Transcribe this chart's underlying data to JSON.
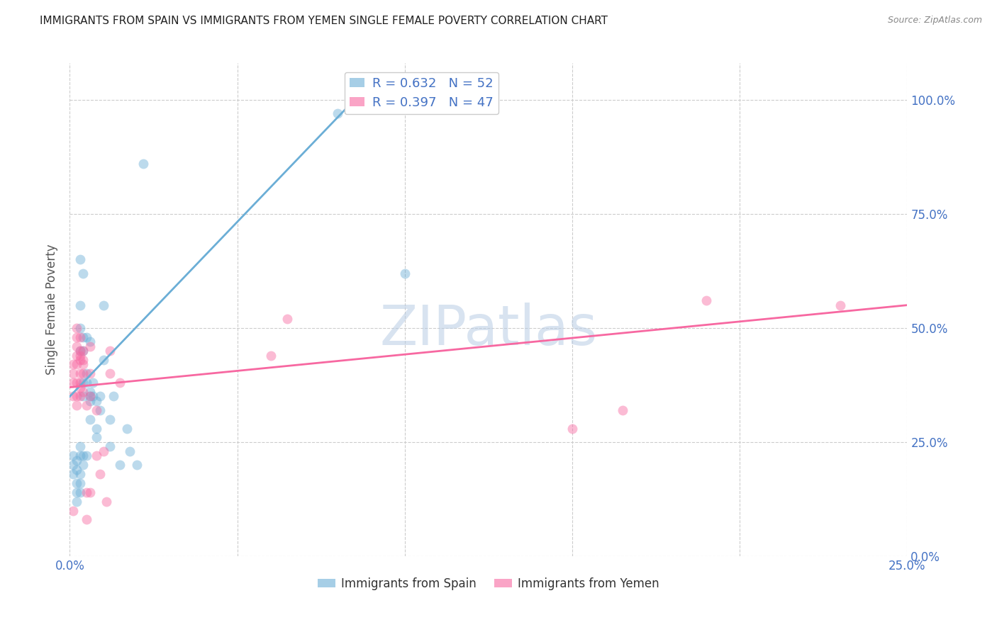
{
  "title": "IMMIGRANTS FROM SPAIN VS IMMIGRANTS FROM YEMEN SINGLE FEMALE POVERTY CORRELATION CHART",
  "source": "Source: ZipAtlas.com",
  "ylabel": "Single Female Poverty",
  "legend_entry1": {
    "R": "0.632",
    "N": "52",
    "color": "#6baed6"
  },
  "legend_entry2": {
    "R": "0.397",
    "N": "47",
    "color": "#f768a1"
  },
  "spain_color": "#6baed6",
  "yemen_color": "#f768a1",
  "spain_scatter": [
    [
      0.1,
      20.0
    ],
    [
      0.1,
      18.0
    ],
    [
      0.1,
      22.0
    ],
    [
      0.2,
      21.0
    ],
    [
      0.2,
      19.0
    ],
    [
      0.2,
      16.0
    ],
    [
      0.2,
      14.0
    ],
    [
      0.2,
      12.0
    ],
    [
      0.3,
      24.0
    ],
    [
      0.3,
      22.0
    ],
    [
      0.3,
      18.0
    ],
    [
      0.3,
      16.0
    ],
    [
      0.3,
      14.0
    ],
    [
      0.3,
      45.0
    ],
    [
      0.3,
      50.0
    ],
    [
      0.3,
      55.0
    ],
    [
      0.3,
      65.0
    ],
    [
      0.4,
      20.0
    ],
    [
      0.4,
      22.0
    ],
    [
      0.4,
      35.0
    ],
    [
      0.4,
      38.0
    ],
    [
      0.4,
      45.0
    ],
    [
      0.4,
      48.0
    ],
    [
      0.4,
      62.0
    ],
    [
      0.5,
      22.0
    ],
    [
      0.5,
      38.0
    ],
    [
      0.5,
      40.0
    ],
    [
      0.5,
      48.0
    ],
    [
      0.6,
      35.0
    ],
    [
      0.6,
      30.0
    ],
    [
      0.6,
      34.0
    ],
    [
      0.6,
      36.0
    ],
    [
      0.6,
      47.0
    ],
    [
      0.7,
      35.0
    ],
    [
      0.7,
      38.0
    ],
    [
      0.8,
      34.0
    ],
    [
      0.8,
      26.0
    ],
    [
      0.8,
      28.0
    ],
    [
      0.9,
      32.0
    ],
    [
      0.9,
      35.0
    ],
    [
      1.0,
      43.0
    ],
    [
      1.0,
      55.0
    ],
    [
      1.2,
      24.0
    ],
    [
      1.2,
      30.0
    ],
    [
      1.3,
      35.0
    ],
    [
      1.5,
      20.0
    ],
    [
      1.7,
      28.0
    ],
    [
      1.8,
      23.0
    ],
    [
      2.0,
      20.0
    ],
    [
      2.2,
      86.0
    ],
    [
      8.0,
      97.0
    ],
    [
      10.0,
      62.0
    ]
  ],
  "yemen_scatter": [
    [
      0.1,
      35.0
    ],
    [
      0.1,
      38.0
    ],
    [
      0.1,
      40.0
    ],
    [
      0.1,
      42.0
    ],
    [
      0.1,
      10.0
    ],
    [
      0.2,
      33.0
    ],
    [
      0.2,
      35.0
    ],
    [
      0.2,
      38.0
    ],
    [
      0.2,
      42.0
    ],
    [
      0.2,
      44.0
    ],
    [
      0.2,
      46.0
    ],
    [
      0.2,
      48.0
    ],
    [
      0.2,
      50.0
    ],
    [
      0.3,
      35.0
    ],
    [
      0.3,
      37.0
    ],
    [
      0.3,
      40.0
    ],
    [
      0.3,
      43.0
    ],
    [
      0.3,
      45.0
    ],
    [
      0.3,
      38.0
    ],
    [
      0.3,
      44.0
    ],
    [
      0.3,
      48.0
    ],
    [
      0.4,
      36.0
    ],
    [
      0.4,
      40.0
    ],
    [
      0.4,
      43.0
    ],
    [
      0.4,
      45.0
    ],
    [
      0.4,
      42.0
    ],
    [
      0.5,
      8.0
    ],
    [
      0.5,
      14.0
    ],
    [
      0.5,
      33.0
    ],
    [
      0.6,
      35.0
    ],
    [
      0.6,
      40.0
    ],
    [
      0.6,
      46.0
    ],
    [
      0.6,
      14.0
    ],
    [
      0.8,
      22.0
    ],
    [
      0.8,
      32.0
    ],
    [
      0.9,
      18.0
    ],
    [
      1.0,
      23.0
    ],
    [
      1.1,
      12.0
    ],
    [
      1.2,
      40.0
    ],
    [
      1.2,
      45.0
    ],
    [
      1.5,
      38.0
    ],
    [
      6.0,
      44.0
    ],
    [
      6.5,
      52.0
    ],
    [
      15.0,
      28.0
    ],
    [
      16.5,
      32.0
    ],
    [
      19.0,
      56.0
    ],
    [
      23.0,
      55.0
    ]
  ],
  "spain_reg_line": {
    "x0": 0.0,
    "y0": 35.0,
    "x1": 8.5,
    "y1": 100.0
  },
  "yemen_reg_line": {
    "x0": 0.0,
    "y0": 37.0,
    "x1": 25.0,
    "y1": 55.0
  },
  "xmin": 0.0,
  "xmax": 25.0,
  "ymin": 0.0,
  "ymax": 108.0,
  "right_yticks": [
    0.0,
    25.0,
    50.0,
    75.0,
    100.0
  ],
  "right_ytick_labels": [
    "0.0%",
    "25.0%",
    "50.0%",
    "75.0%",
    "100.0%"
  ],
  "xticks": [
    0.0,
    5.0,
    10.0,
    15.0,
    20.0,
    25.0
  ],
  "xtick_labels": [
    "0.0%",
    "",
    "",
    "",
    "",
    "25.0%"
  ],
  "watermark": "ZIPatlas",
  "background_color": "#ffffff",
  "grid_color": "#cccccc",
  "title_color": "#222222",
  "axis_label_color": "#4472c4",
  "scatter_size": 100,
  "scatter_alpha": 0.45,
  "legend_label_spain": "Immigrants from Spain",
  "legend_label_yemen": "Immigrants from Yemen"
}
